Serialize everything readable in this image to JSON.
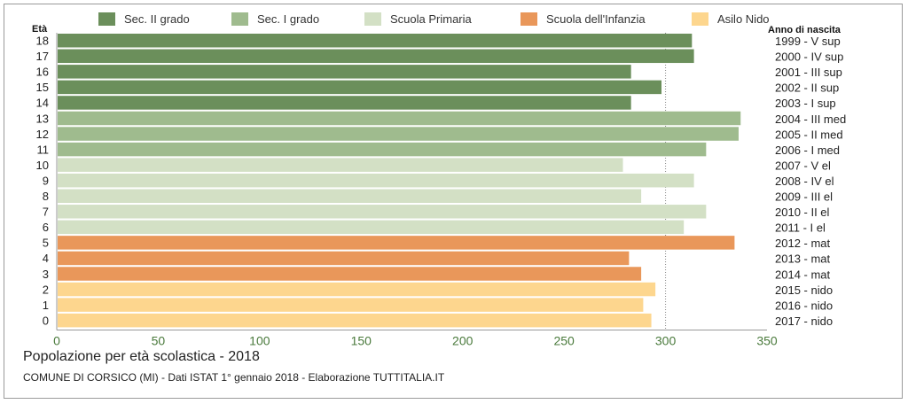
{
  "chart_data": {
    "type": "bar",
    "orientation": "horizontal",
    "title": "Popolazione per età scolastica - 2018",
    "subtitle": "COMUNE DI CORSICO (MI) - Dati ISTAT 1° gennaio 2018 - Elaborazione TUTTITALIA.IT",
    "ylabel_left": "Età",
    "ylabel_right": "Anno di nascita",
    "xlim": [
      0,
      350
    ],
    "xticks": [
      0,
      50,
      100,
      150,
      200,
      250,
      300,
      350
    ],
    "grid": "x at 300",
    "legend_position": "top",
    "legend": [
      {
        "name": "Sec. II grado",
        "color": "#6b8f5b"
      },
      {
        "name": "Sec. I grado",
        "color": "#9fbb8e"
      },
      {
        "name": "Scuola Primaria",
        "color": "#d3e0c5"
      },
      {
        "name": "Scuola dell'Infanzia",
        "color": "#e9975a"
      },
      {
        "name": "Asilo Nido",
        "color": "#fdd68e"
      }
    ],
    "rows": [
      {
        "age": "18",
        "birth": "1999 - V sup",
        "value": 313,
        "group": 0
      },
      {
        "age": "17",
        "birth": "2000 - IV sup",
        "value": 314,
        "group": 0
      },
      {
        "age": "16",
        "birth": "2001 - III sup",
        "value": 283,
        "group": 0
      },
      {
        "age": "15",
        "birth": "2002 - II sup",
        "value": 298,
        "group": 0
      },
      {
        "age": "14",
        "birth": "2003 - I sup",
        "value": 283,
        "group": 0
      },
      {
        "age": "13",
        "birth": "2004 - III med",
        "value": 337,
        "group": 1
      },
      {
        "age": "12",
        "birth": "2005 - II med",
        "value": 336,
        "group": 1
      },
      {
        "age": "11",
        "birth": "2006 - I med",
        "value": 320,
        "group": 1
      },
      {
        "age": "10",
        "birth": "2007 - V el",
        "value": 279,
        "group": 2
      },
      {
        "age": "9",
        "birth": "2008 - IV el",
        "value": 314,
        "group": 2
      },
      {
        "age": "8",
        "birth": "2009 - III el",
        "value": 288,
        "group": 2
      },
      {
        "age": "7",
        "birth": "2010 - II el",
        "value": 320,
        "group": 2
      },
      {
        "age": "6",
        "birth": "2011 - I el",
        "value": 309,
        "group": 2
      },
      {
        "age": "5",
        "birth": "2012 - mat",
        "value": 334,
        "group": 3
      },
      {
        "age": "4",
        "birth": "2013 - mat",
        "value": 282,
        "group": 3
      },
      {
        "age": "3",
        "birth": "2014 - mat",
        "value": 288,
        "group": 3
      },
      {
        "age": "2",
        "birth": "2015 - nido",
        "value": 295,
        "group": 4
      },
      {
        "age": "1",
        "birth": "2016 - nido",
        "value": 289,
        "group": 4
      },
      {
        "age": "0",
        "birth": "2017 - nido",
        "value": 293,
        "group": 4
      }
    ]
  }
}
